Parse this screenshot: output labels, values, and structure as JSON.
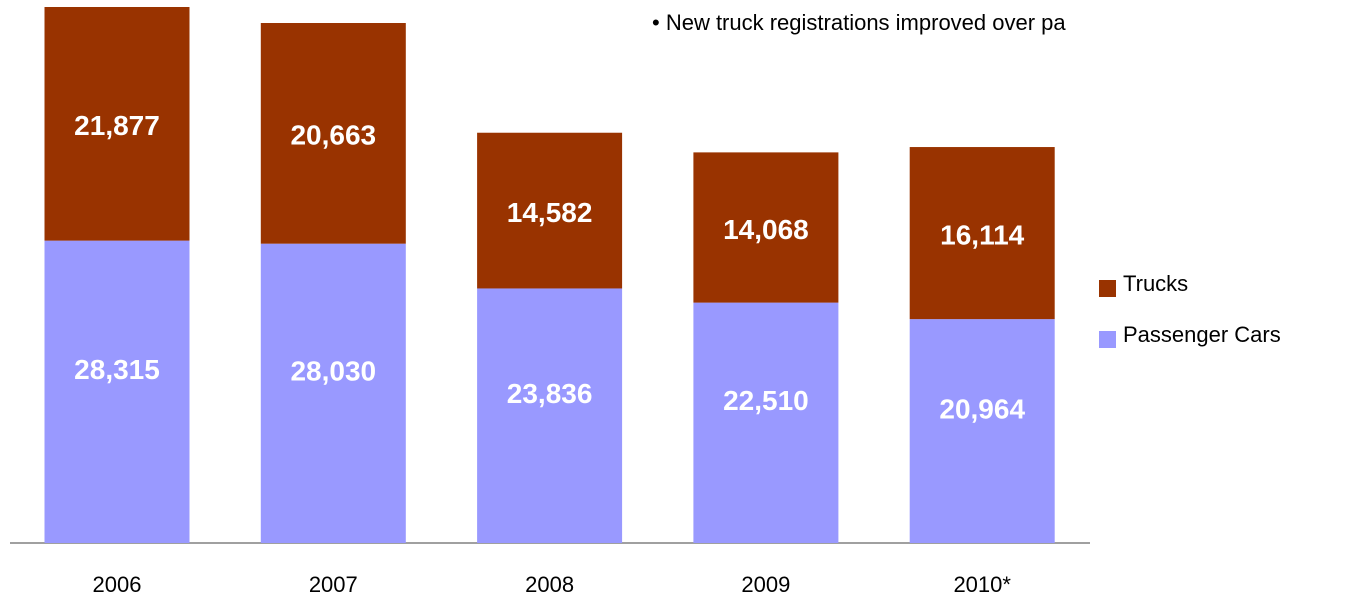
{
  "chart_data": {
    "type": "stacked-bar",
    "annotation": "• New truck registrations improved over pa",
    "categories": [
      "2006",
      "2007",
      "2008",
      "2009",
      "2010*"
    ],
    "series": [
      {
        "name": "Passenger Cars",
        "color": "#9999ff",
        "values": [
          28315,
          28030,
          23836,
          22510,
          20964
        ],
        "value_labels": [
          "28,315",
          "28,030",
          "23,836",
          "22,510",
          "20,964"
        ]
      },
      {
        "name": "Trucks",
        "color": "#993300",
        "values": [
          21877,
          20663,
          14582,
          14068,
          16114
        ],
        "value_labels": [
          "21,877",
          "20,663",
          "14,582",
          "14,068",
          "16,114"
        ]
      }
    ]
  }
}
